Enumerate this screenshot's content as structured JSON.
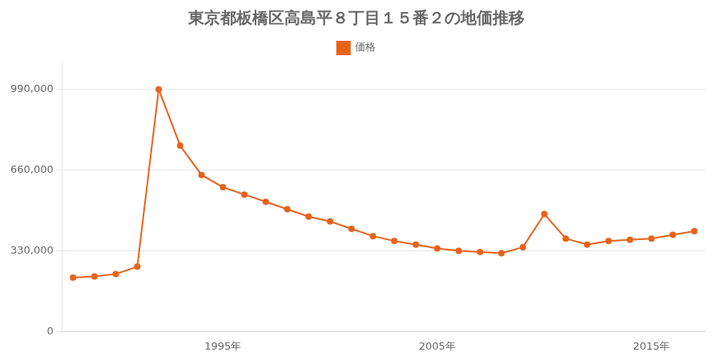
{
  "chart_data": {
    "type": "line",
    "title": "東京都板橋区高島平８丁目１５番２の地価推移",
    "x": [
      1988,
      1989,
      1990,
      1991,
      1992,
      1993,
      1994,
      1995,
      1996,
      1997,
      1998,
      1999,
      2000,
      2001,
      2002,
      2003,
      2004,
      2005,
      2006,
      2007,
      2008,
      2009,
      2010,
      2011,
      2012,
      2013,
      2014,
      2015,
      2016,
      2017
    ],
    "series": [
      {
        "name": "価格",
        "color": "#e8621a",
        "marker": "circle",
        "line_style": "solid",
        "values": [
          220000,
          225000,
          235000,
          265000,
          990000,
          760000,
          640000,
          590000,
          560000,
          530000,
          500000,
          470000,
          450000,
          420000,
          390000,
          370000,
          355000,
          340000,
          330000,
          325000,
          320000,
          345000,
          480000,
          380000,
          355000,
          370000,
          375000,
          380000,
          395000,
          410000
        ]
      }
    ],
    "xlim": [
      1987.5,
      2017.5
    ],
    "xticks": [
      {
        "value": 1995,
        "label": "1995年"
      },
      {
        "value": 2005,
        "label": "2005年"
      },
      {
        "value": 2015,
        "label": "2015年"
      }
    ],
    "ylim": [
      0,
      1100000
    ],
    "yticks": [
      0,
      {
        "value": 330000,
        "label": "330,000"
      },
      {
        "value": 660000,
        "label": "660,000"
      },
      {
        "value": 990000,
        "label": "990,000"
      }
    ],
    "grid": "y",
    "legend": "top"
  }
}
